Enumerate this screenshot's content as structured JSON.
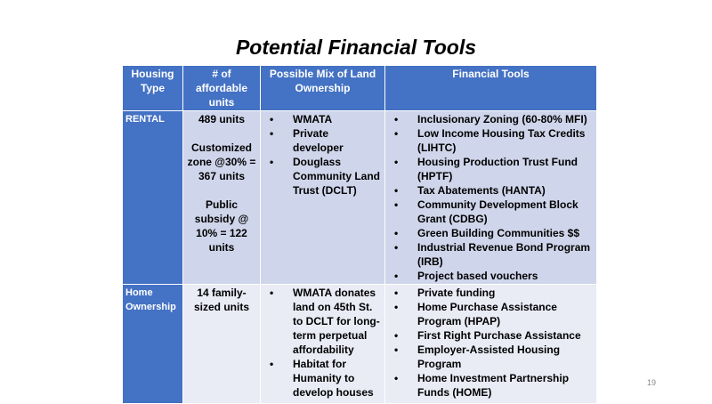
{
  "title": "Potential Financial Tools",
  "headers": [
    "Housing Type",
    "# of affordable units",
    "Possible Mix of Land Ownership",
    "Financial Tools"
  ],
  "rows": [
    {
      "type": "RENTAL",
      "units": [
        "489 units",
        "Customized zone @30% = 367 units",
        "Public subsidy @ 10% = 122 units"
      ],
      "ownership": [
        "WMATA",
        "Private developer",
        "Douglass Community Land Trust (DCLT)"
      ],
      "tools": [
        "Inclusionary Zoning (60-80% MFI)",
        "Low Income Housing Tax Credits (LIHTC)",
        "Housing Production Trust Fund (HPTF)",
        "Tax Abatements (HANTA)",
        "Community Development Block Grant (CDBG)",
        "Green Building Communities $$",
        "Industrial Revenue Bond Program (IRB)",
        "Project based vouchers"
      ]
    },
    {
      "type": "Home Ownership",
      "units": [
        "14 family-sized units"
      ],
      "ownership": [
        "WMATA donates land on 45th St. to DCLT for long-term perpetual affordability",
        "Habitat for Humanity to develop houses"
      ],
      "tools": [
        "Private funding",
        "Home Purchase Assistance Program (HPAP)",
        "First Right Purchase Assistance",
        "Employer-Assisted Housing Program",
        "Home Investment Partnership Funds (HOME)"
      ]
    }
  ],
  "page_number": "19",
  "colors": {
    "header": "#4472C4",
    "row1": "#CFD5EA",
    "row2": "#E9EBF5"
  }
}
